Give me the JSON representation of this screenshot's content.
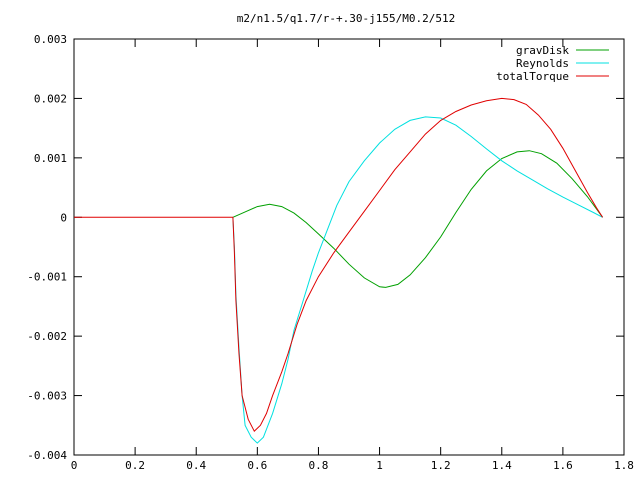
{
  "chart_data": {
    "type": "line",
    "title": "m2/n1.5/q1.7/r-+.30-j155/M0.2/512",
    "xlabel": "",
    "ylabel": "",
    "xlim": [
      0,
      1.8
    ],
    "ylim": [
      -0.004,
      0.003
    ],
    "x_ticks": [
      0,
      0.2,
      0.4,
      0.6,
      0.8,
      1,
      1.2,
      1.4,
      1.6,
      1.8
    ],
    "x_tick_labels": [
      "0",
      "0.2",
      "0.4",
      "0.6",
      "0.8",
      "1",
      "1.2",
      "1.4",
      "1.6",
      "1.8"
    ],
    "y_ticks": [
      0.003,
      0.002,
      0.001,
      0,
      -0.001,
      -0.002,
      -0.003,
      -0.004
    ],
    "y_tick_labels": [
      "0.003",
      "0.002",
      "0.001",
      "0",
      "-0.001",
      "-0.002",
      "-0.003",
      "-0.004"
    ],
    "grid": false,
    "legend_position": "top-right",
    "series": [
      {
        "name": "gravDisk",
        "color": "#00a000",
        "points": [
          [
            0.52,
            0.0
          ],
          [
            0.56,
            9e-05
          ],
          [
            0.6,
            0.00018
          ],
          [
            0.64,
            0.00022
          ],
          [
            0.68,
            0.00018
          ],
          [
            0.72,
            7e-05
          ],
          [
            0.76,
            -9e-05
          ],
          [
            0.8,
            -0.00028
          ],
          [
            0.85,
            -0.00052
          ],
          [
            0.9,
            -0.00079
          ],
          [
            0.95,
            -0.00102
          ],
          [
            1.0,
            -0.00117
          ],
          [
            1.02,
            -0.00118
          ],
          [
            1.06,
            -0.00113
          ],
          [
            1.1,
            -0.00097
          ],
          [
            1.15,
            -0.00068
          ],
          [
            1.2,
            -0.00033
          ],
          [
            1.25,
            8e-05
          ],
          [
            1.3,
            0.00047
          ],
          [
            1.35,
            0.00078
          ],
          [
            1.4,
            0.00099
          ],
          [
            1.45,
            0.0011
          ],
          [
            1.49,
            0.00112
          ],
          [
            1.53,
            0.00107
          ],
          [
            1.58,
            0.00091
          ],
          [
            1.63,
            0.00065
          ],
          [
            1.68,
            0.00035
          ],
          [
            1.71,
            0.00014
          ],
          [
            1.73,
            0.0
          ]
        ]
      },
      {
        "name": "Reynolds",
        "color": "#00e0e0",
        "points": [
          [
            0.52,
            0.0
          ],
          [
            0.525,
            -0.0005
          ],
          [
            0.53,
            -0.0013
          ],
          [
            0.54,
            -0.0022
          ],
          [
            0.55,
            -0.003
          ],
          [
            0.56,
            -0.0035
          ],
          [
            0.58,
            -0.0037
          ],
          [
            0.6,
            -0.0038
          ],
          [
            0.62,
            -0.0037
          ],
          [
            0.65,
            -0.0033
          ],
          [
            0.68,
            -0.0028
          ],
          [
            0.7,
            -0.0024
          ],
          [
            0.72,
            -0.0019
          ],
          [
            0.75,
            -0.0014
          ],
          [
            0.78,
            -0.0009
          ],
          [
            0.8,
            -0.0006
          ],
          [
            0.83,
            -0.0002
          ],
          [
            0.86,
            0.0002
          ],
          [
            0.9,
            0.0006
          ],
          [
            0.95,
            0.00095
          ],
          [
            1.0,
            0.00125
          ],
          [
            1.05,
            0.00148
          ],
          [
            1.1,
            0.00163
          ],
          [
            1.15,
            0.00169
          ],
          [
            1.2,
            0.00167
          ],
          [
            1.25,
            0.00155
          ],
          [
            1.3,
            0.00136
          ],
          [
            1.35,
            0.00115
          ],
          [
            1.4,
            0.00095
          ],
          [
            1.45,
            0.00078
          ],
          [
            1.5,
            0.00063
          ],
          [
            1.55,
            0.00048
          ],
          [
            1.6,
            0.00034
          ],
          [
            1.65,
            0.00021
          ],
          [
            1.7,
            8e-05
          ],
          [
            1.73,
            0.0
          ]
        ]
      },
      {
        "name": "totalTorque",
        "color": "#e00000",
        "points": [
          [
            0.0,
            0.0
          ],
          [
            0.52,
            0.0
          ],
          [
            0.525,
            -0.0006
          ],
          [
            0.53,
            -0.0014
          ],
          [
            0.54,
            -0.0023
          ],
          [
            0.55,
            -0.003
          ],
          [
            0.57,
            -0.0034
          ],
          [
            0.59,
            -0.0036
          ],
          [
            0.61,
            -0.0035
          ],
          [
            0.63,
            -0.0033
          ],
          [
            0.65,
            -0.003
          ],
          [
            0.68,
            -0.0026
          ],
          [
            0.7,
            -0.0023
          ],
          [
            0.73,
            -0.0018
          ],
          [
            0.76,
            -0.0014
          ],
          [
            0.8,
            -0.001
          ],
          [
            0.85,
            -0.0006
          ],
          [
            0.9,
            -0.00025
          ],
          [
            0.95,
            0.0001
          ],
          [
            1.0,
            0.00045
          ],
          [
            1.05,
            0.0008
          ],
          [
            1.1,
            0.0011
          ],
          [
            1.15,
            0.0014
          ],
          [
            1.2,
            0.00163
          ],
          [
            1.25,
            0.00178
          ],
          [
            1.3,
            0.00189
          ],
          [
            1.35,
            0.00196
          ],
          [
            1.4,
            0.002
          ],
          [
            1.44,
            0.00198
          ],
          [
            1.48,
            0.0019
          ],
          [
            1.52,
            0.00172
          ],
          [
            1.56,
            0.00148
          ],
          [
            1.6,
            0.00116
          ],
          [
            1.64,
            0.00079
          ],
          [
            1.68,
            0.00042
          ],
          [
            1.71,
            0.00016
          ],
          [
            1.73,
            0.0
          ]
        ]
      }
    ]
  }
}
